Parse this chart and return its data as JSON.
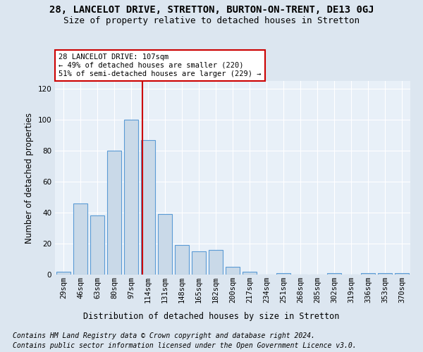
{
  "title": "28, LANCELOT DRIVE, STRETTON, BURTON-ON-TRENT, DE13 0GJ",
  "subtitle": "Size of property relative to detached houses in Stretton",
  "xlabel": "Distribution of detached houses by size in Stretton",
  "ylabel": "Number of detached properties",
  "bin_labels": [
    "29sqm",
    "46sqm",
    "63sqm",
    "80sqm",
    "97sqm",
    "114sqm",
    "131sqm",
    "148sqm",
    "165sqm",
    "182sqm",
    "200sqm",
    "217sqm",
    "234sqm",
    "251sqm",
    "268sqm",
    "285sqm",
    "302sqm",
    "319sqm",
    "336sqm",
    "353sqm",
    "370sqm"
  ],
  "bar_values": [
    2,
    46,
    38,
    80,
    100,
    87,
    39,
    19,
    15,
    16,
    5,
    2,
    0,
    1,
    0,
    0,
    1,
    0,
    1,
    1,
    1
  ],
  "bar_color": "#c9d9e8",
  "bar_edge_color": "#5b9bd5",
  "vline_x": 4.65,
  "vline_color": "#cc0000",
  "annotation_line1": "28 LANCELOT DRIVE: 107sqm",
  "annotation_line2": "← 49% of detached houses are smaller (220)",
  "annotation_line3": "51% of semi-detached houses are larger (229) →",
  "annotation_box_color": "#ffffff",
  "annotation_box_edge": "#cc0000",
  "ylim": [
    0,
    125
  ],
  "yticks": [
    0,
    20,
    40,
    60,
    80,
    100,
    120
  ],
  "footnote1": "Contains HM Land Registry data © Crown copyright and database right 2024.",
  "footnote2": "Contains public sector information licensed under the Open Government Licence v3.0.",
  "background_color": "#dce6f0",
  "plot_bg_color": "#e8f0f8",
  "title_fontsize": 10,
  "subtitle_fontsize": 9,
  "label_fontsize": 8.5,
  "tick_fontsize": 7.5,
  "footnote_fontsize": 7
}
